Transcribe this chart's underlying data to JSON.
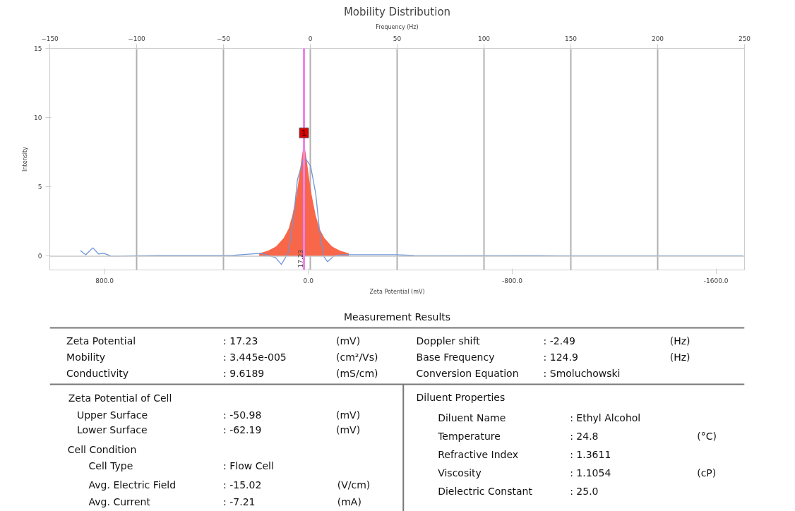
{
  "chart_data": {
    "type": "area",
    "title": "Mobility Distribution",
    "xlabel": "Zeta Potential (mV)",
    "x2label": "Frequency (Hz)",
    "ylabel": "Intensity",
    "xlim": [
      1015,
      -1712
    ],
    "xticks": [
      {
        "value": 800,
        "label": "800.0"
      },
      {
        "value": 0,
        "label": "0.0"
      },
      {
        "value": -800,
        "label": "-800.0"
      },
      {
        "value": -1600,
        "label": "-1600.0"
      }
    ],
    "x2lim": [
      -150,
      250
    ],
    "x2ticks": [
      -150,
      -100,
      -50,
      0,
      50,
      100,
      150,
      200,
      250
    ],
    "ylim": [
      -1,
      15
    ],
    "yticks": [
      0,
      5,
      10,
      15
    ],
    "grid": "x",
    "series": [
      {
        "color": "#f8674a",
        "x": [
          193,
          157,
          127,
          97,
          77,
          62,
          47,
          37,
          27,
          17,
          7,
          -3,
          -13,
          -28,
          -43,
          -63,
          -93,
          -123,
          -159
        ],
        "values": [
          0.2,
          0.4,
          0.7,
          1.3,
          2.0,
          3.0,
          4.4,
          5.6,
          7.0,
          8.2,
          7.0,
          5.6,
          4.4,
          3.0,
          2.0,
          1.3,
          0.7,
          0.4,
          0.2
        ]
      },
      {
        "type": "line",
        "color": "#7096d8",
        "x": [
          895,
          874,
          846,
          823,
          803,
          774,
          588,
          301,
          186,
          129,
          106,
          77,
          57,
          43,
          17,
          -9,
          -29,
          -43,
          -60,
          -75,
          -100,
          -129,
          -344,
          -416,
          -989,
          -1706
        ],
        "values": [
          0.4,
          0.1,
          0.6,
          0.15,
          0.2,
          0,
          0.05,
          0.05,
          0.2,
          -0.1,
          -0.6,
          0.3,
          3,
          5.5,
          7.2,
          6.5,
          4.5,
          2,
          0,
          -0.4,
          0,
          0.1,
          0.1,
          0.05,
          0.03,
          0.03
        ]
      }
    ],
    "ref_lines": [
      {
        "axis": "y",
        "value": 0,
        "color": "#c8c8c8"
      },
      {
        "axis": "x",
        "value": 17.23,
        "label": "17.23",
        "color": "#ee82ee"
      }
    ],
    "annotations": [
      "Measurement Results",
      "Zeta Potential",
      ": 17.23",
      "(mV)",
      "Mobility",
      ": 3.445e-005",
      "(cm²/Vs)",
      "Conductivity",
      ": 9.6189",
      "(mS/cm)",
      "Doppler shift",
      ": -2.49",
      "(Hz)",
      "Base Frequency",
      ": 124.9",
      "(Hz)",
      "Conversion Equation",
      ": Smoluchowski",
      "Zeta Potential of Cell",
      "Upper Surface",
      ": -50.98",
      "(mV)",
      "Lower Surface",
      ": -62.19",
      "(mV)",
      "Cell Condition",
      "Cell Type",
      ": Flow Cell",
      "Avg. Electric Field",
      ": -15.02",
      "(V/cm)",
      "Avg. Current",
      ": -7.21",
      "(mA)",
      "Diluent Properties",
      "Diluent Name",
      ": Ethyl Alcohol",
      "Temperature",
      ": 24.8",
      "(°C)",
      "Refractive Index",
      ": 1.3611",
      "Viscosity",
      ": 1.1054",
      "(cP)",
      "Dielectric Constant",
      ": 25.0",
      {
        "text": "1",
        "x": 17.23,
        "y": 8.9
      }
    ]
  }
}
